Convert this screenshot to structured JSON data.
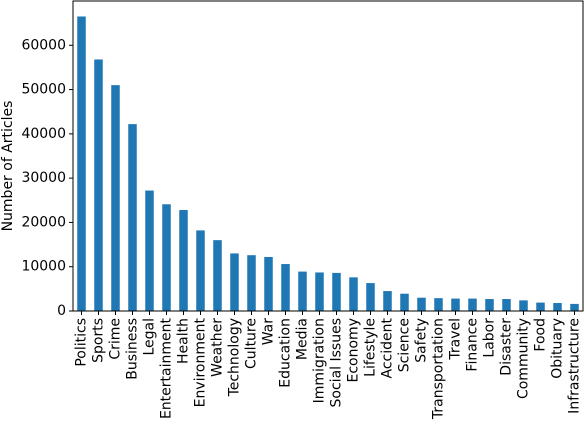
{
  "chart_data": {
    "type": "bar",
    "title": "",
    "xlabel": "",
    "ylabel": "Number of Articles",
    "ylim": [
      0,
      70000
    ],
    "yticks": [
      0,
      10000,
      20000,
      30000,
      40000,
      50000,
      60000
    ],
    "ytick_labels": [
      "0",
      "10000",
      "20000",
      "30000",
      "40000",
      "50000",
      "60000"
    ],
    "grid": false,
    "legend": "none",
    "bar_color": "#1f77b4",
    "categories": [
      "Politics",
      "Sports",
      "Crime",
      "Business",
      "Legal",
      "Entertainment",
      "Health",
      "Environment",
      "Weather",
      "Technology",
      "Culture",
      "War",
      "Education",
      "Media",
      "Immigration",
      "Social Issues",
      "Economy",
      "Lifestyle",
      "Accident",
      "Science",
      "Safety",
      "Transportation",
      "Travel",
      "Finance",
      "Labor",
      "Disaster",
      "Community",
      "Food",
      "Obituary",
      "Infrastructure"
    ],
    "values": [
      66500,
      56800,
      51000,
      42200,
      27200,
      24100,
      22800,
      18200,
      16000,
      13000,
      12600,
      12200,
      10600,
      8900,
      8700,
      8600,
      7600,
      6300,
      4500,
      3900,
      3000,
      2900,
      2800,
      2800,
      2700,
      2700,
      2400,
      1900,
      1800,
      1600
    ]
  }
}
